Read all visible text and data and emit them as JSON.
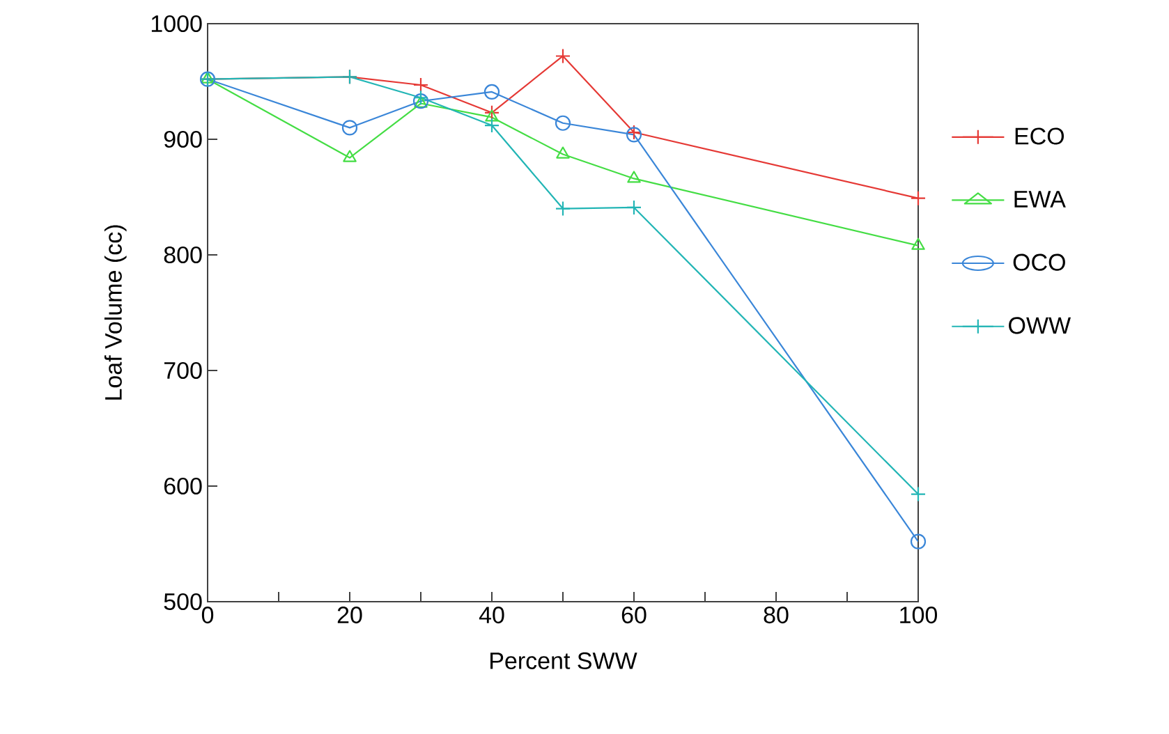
{
  "chart_data": {
    "type": "line",
    "xlabel": "Percent SWW",
    "ylabel": "Loaf Volume (cc)",
    "x": [
      0,
      20,
      30,
      40,
      50,
      60,
      100
    ],
    "xlim": [
      0,
      100
    ],
    "ylim": [
      500,
      1000
    ],
    "xticks": [
      0,
      {
        "value": 10,
        "label": null
      },
      20,
      {
        "value": 30,
        "label": null
      },
      40,
      {
        "value": 50,
        "label": null
      },
      60,
      {
        "value": 70,
        "label": null
      },
      80,
      {
        "value": 90,
        "label": null
      },
      100
    ],
    "yticks": [
      500,
      600,
      700,
      800,
      900,
      1000
    ],
    "grid": false,
    "legend": "right",
    "line_style": "solid",
    "series": [
      {
        "name": "ECO",
        "color": "#e53935",
        "marker": "cross",
        "values": [
          952,
          954,
          947,
          923,
          972,
          906,
          849
        ]
      },
      {
        "name": "EWA",
        "color": "#44dd44",
        "marker": "triangle",
        "values": [
          952,
          884,
          931,
          919,
          887,
          866,
          808
        ]
      },
      {
        "name": "OCO",
        "color": "#3a86d8",
        "marker": "circle",
        "values": [
          952,
          910,
          933,
          941,
          914,
          904,
          552
        ]
      },
      {
        "name": "OWW",
        "color": "#22b5b5",
        "marker": "cross",
        "values": [
          952,
          954,
          936,
          912,
          840,
          841,
          593
        ]
      }
    ]
  }
}
